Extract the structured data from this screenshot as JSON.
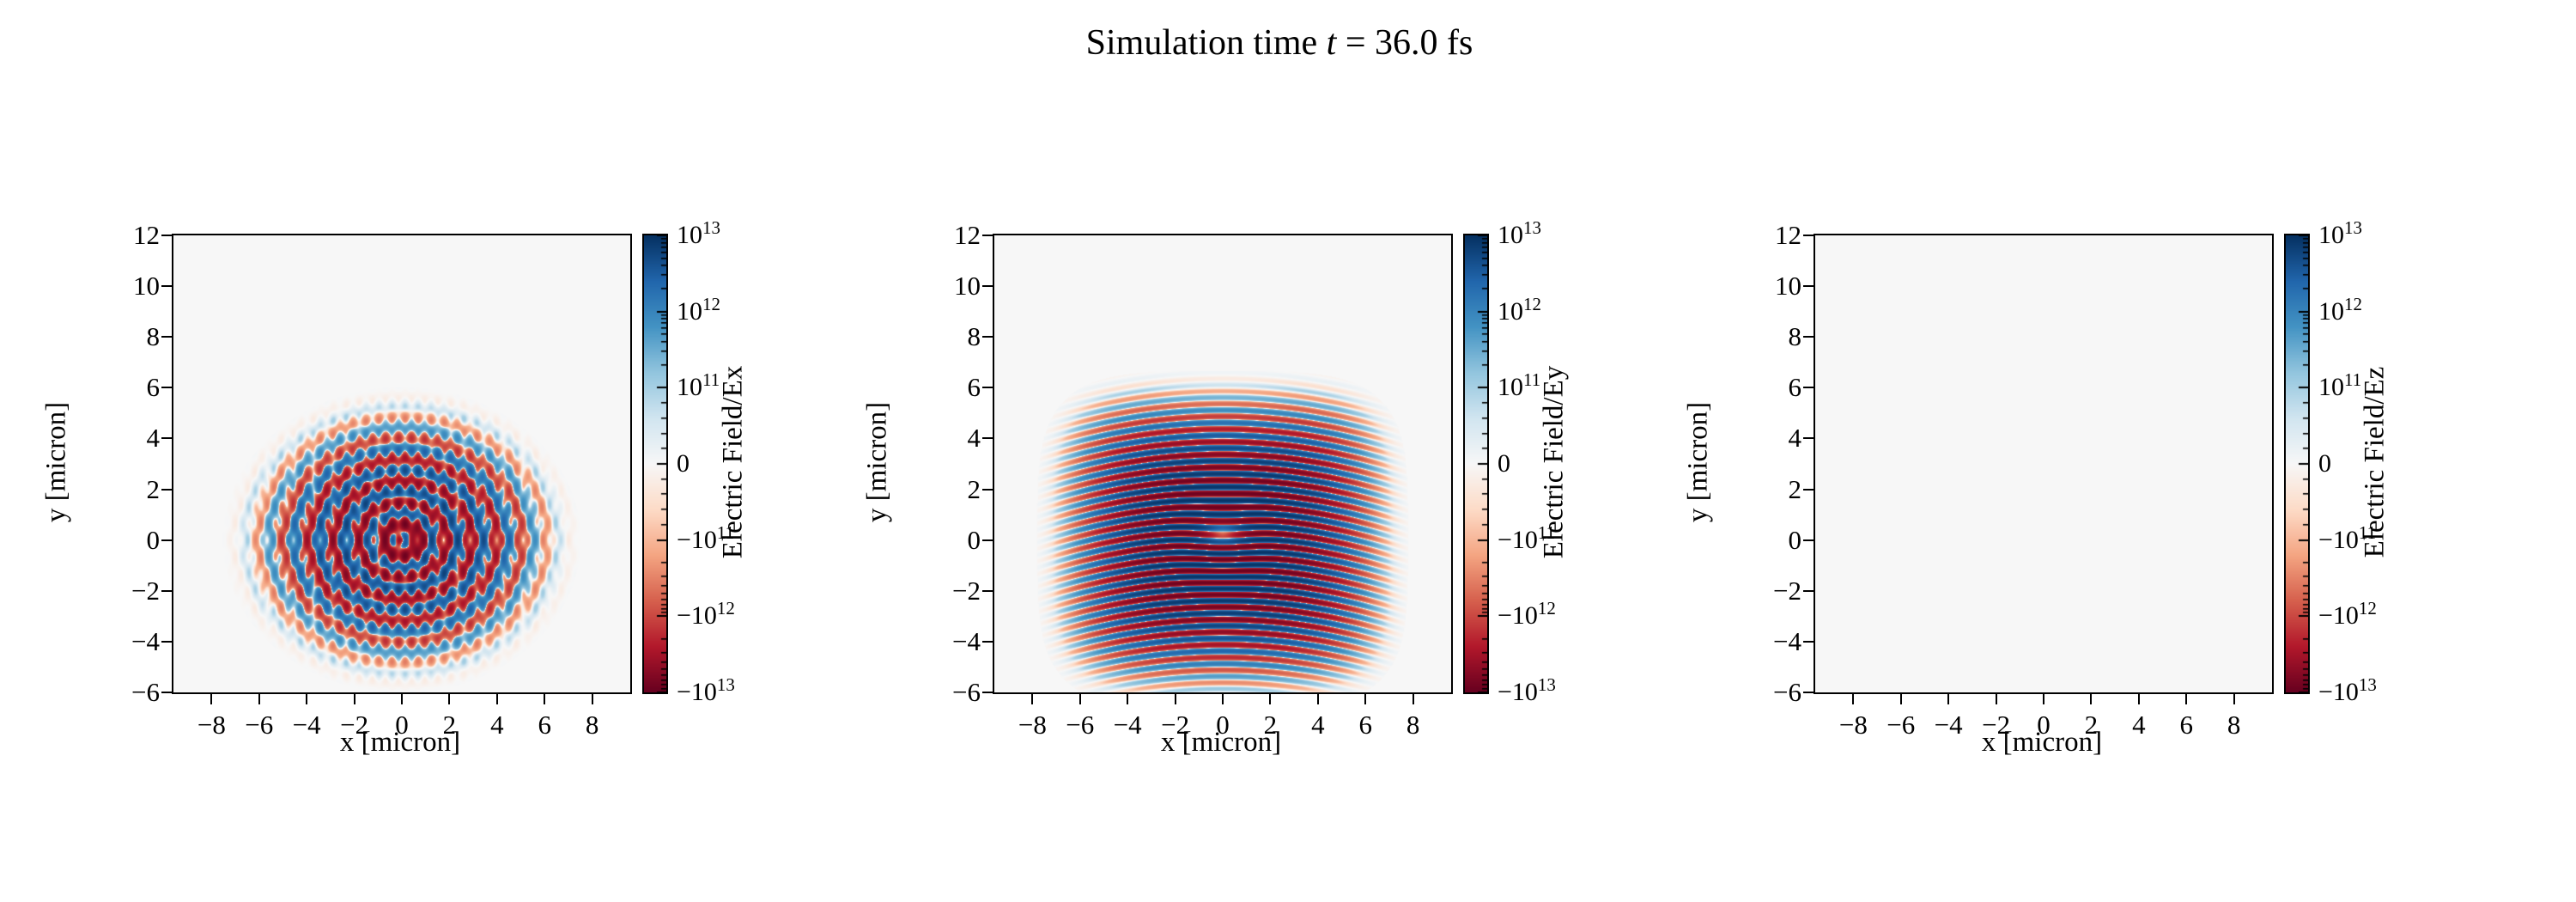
{
  "chart_data": {
    "type": "heatmap",
    "title": {
      "prefix": "Simulation time ",
      "var": "t",
      "suffix": " = 36.0 fs"
    },
    "xlabel": "x [micron]",
    "ylabel": "y [micron]",
    "x_range": [
      -9.6,
      9.6
    ],
    "y_range": [
      -6,
      12
    ],
    "x_ticks": {
      "values": [
        -8,
        -6,
        -4,
        -2,
        0,
        2,
        4,
        6,
        8
      ],
      "labels": [
        "−8",
        "−6",
        "−4",
        "−2",
        "0",
        "2",
        "4",
        "6",
        "8"
      ]
    },
    "y_ticks": {
      "values": [
        12,
        10,
        8,
        6,
        4,
        2,
        0,
        -2,
        -4,
        -6
      ],
      "labels": [
        "12",
        "10",
        "8",
        "6",
        "4",
        "2",
        "0",
        "−2",
        "−4",
        "−6"
      ]
    },
    "colorbar": {
      "scale": "symlog",
      "vmin": -10000000000000.0,
      "vmax": 10000000000000.0,
      "linthresh": 100000000000.0,
      "colormap": "RdBu",
      "colors": [
        "#67001f",
        "#b2182b",
        "#d6604d",
        "#f4a582",
        "#fddbc7",
        "#f7f7f7",
        "#d1e5f0",
        "#92c5de",
        "#4393c3",
        "#2166ac",
        "#053061"
      ],
      "ticks": [
        {
          "u": 3,
          "mantissa": "10",
          "exp": "13"
        },
        {
          "u": 2,
          "mantissa": "10",
          "exp": "12"
        },
        {
          "u": 1,
          "mantissa": "10",
          "exp": "11"
        },
        {
          "u": 0,
          "mantissa": "0",
          "exp": ""
        },
        {
          "u": -1,
          "mantissa": "−10",
          "exp": "11"
        },
        {
          "u": -2,
          "mantissa": "−10",
          "exp": "12"
        },
        {
          "u": -3,
          "mantissa": "−10",
          "exp": "13"
        }
      ]
    },
    "panels": [
      {
        "field": "Ex",
        "colorbar_label": "Electric Field/Ex",
        "pattern": "radial_interference",
        "amplitude": 6000000000000.0,
        "params": {
          "ring_wavelength": 0.85,
          "fringe_wavelength": 0.55,
          "extent": 3.7,
          "aspect": 1.25
        }
      },
      {
        "field": "Ey",
        "colorbar_label": "Electric Field/Ey",
        "pattern": "horizontal_stripes",
        "amplitude": 9000000000000.0,
        "params": {
          "wavelength": 0.5,
          "extent_x": 4.8,
          "extent_y": 4.1,
          "curvature": 0.02,
          "notch_x": 0.9,
          "notch_y": 0.45
        }
      },
      {
        "field": "Ez",
        "colorbar_label": "Electric Field/Ez",
        "pattern": "zero",
        "amplitude": 0,
        "params": {}
      }
    ]
  }
}
